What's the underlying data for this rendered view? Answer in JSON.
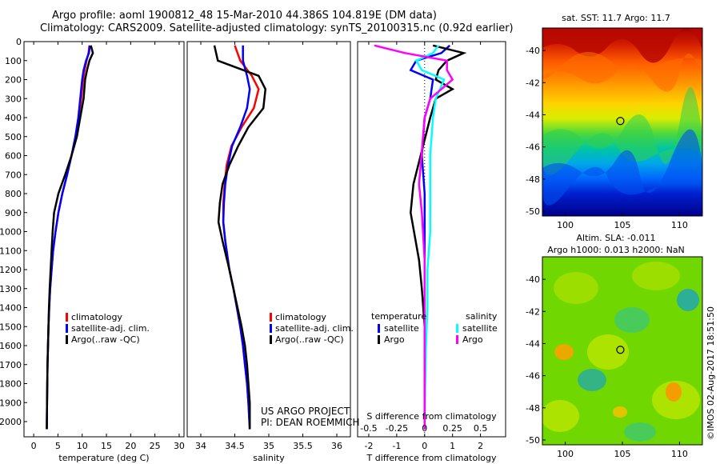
{
  "header": {
    "line1": "Argo profile: aoml 1900812_48 15-Mar-2010 44.386S 104.819E (DM data)",
    "line2": "Climatology: CARS2009. Satellite-adjusted climatology: synTS_20100315.nc (0.92d earlier)"
  },
  "credits": {
    "line1": "US ARGO PROJECT",
    "line2": "PI: DEAN ROEMMICH"
  },
  "stamp": "©IMOS 02-Aug-2017 18:51:50",
  "colors": {
    "climatology": "#ff0000",
    "satellite": "#0000ff",
    "argo": "#000000",
    "sat_salinity": "#00ffff",
    "argo_salinity": "#ff00ff"
  },
  "chart_data": [
    {
      "id": "temperature",
      "type": "line",
      "xlabel": "temperature (deg C)",
      "ylabel": "",
      "xlim": [
        -2,
        31
      ],
      "ylim": [
        2080,
        0
      ],
      "xticks": [
        0,
        5,
        10,
        15,
        20,
        25,
        30
      ],
      "yticks": [
        0,
        100,
        200,
        300,
        400,
        500,
        600,
        700,
        800,
        900,
        1000,
        1100,
        1200,
        1300,
        1400,
        1500,
        1600,
        1700,
        1800,
        1900,
        2000
      ],
      "legend": {
        "placement": "lower-middle",
        "entries": [
          "climatology",
          "satellite-adj. clim.",
          "Argo(..raw -QC)"
        ]
      },
      "series": [
        {
          "name": "climatology",
          "color": "#ff0000",
          "x": [
            11.5,
            11.3,
            10.9,
            10.5,
            10.2,
            9.8,
            9.3,
            8.7,
            7.8,
            6.9,
            5.9,
            5.1,
            4.5,
            4.0,
            3.7,
            3.4,
            3.2,
            3.05,
            2.95,
            2.85,
            2.8,
            2.75,
            2.7
          ],
          "y": [
            20,
            60,
            100,
            150,
            200,
            300,
            400,
            500,
            600,
            700,
            800,
            900,
            1000,
            1100,
            1200,
            1300,
            1400,
            1500,
            1600,
            1700,
            1800,
            1900,
            2040
          ]
        },
        {
          "name": "satellite-adj. clim.",
          "color": "#0000ff",
          "x": [
            11.6,
            11.4,
            10.8,
            10.3,
            10.0,
            9.6,
            9.2,
            8.6,
            7.8,
            6.9,
            5.9,
            5.1,
            4.5,
            4.0,
            3.7,
            3.4,
            3.2,
            3.05,
            2.95,
            2.85,
            2.8,
            2.75,
            2.7
          ],
          "y": [
            20,
            60,
            100,
            150,
            200,
            300,
            400,
            500,
            600,
            700,
            800,
            900,
            1000,
            1100,
            1200,
            1300,
            1400,
            1500,
            1600,
            1700,
            1800,
            1900,
            2040
          ]
        },
        {
          "name": "Argo(..raw -QC)",
          "color": "#000000",
          "x": [
            11.8,
            12.2,
            11.5,
            11.0,
            10.6,
            10.3,
            9.6,
            8.9,
            7.8,
            6.5,
            5.1,
            4.2,
            3.9,
            3.7,
            3.5,
            3.3,
            3.15,
            3.05,
            2.95,
            2.85,
            2.8,
            2.75,
            2.7
          ],
          "y": [
            20,
            60,
            100,
            150,
            200,
            300,
            400,
            500,
            600,
            700,
            800,
            900,
            1000,
            1100,
            1200,
            1300,
            1400,
            1500,
            1600,
            1700,
            1800,
            1900,
            2040
          ]
        }
      ]
    },
    {
      "id": "salinity",
      "type": "line",
      "xlabel": "salinity",
      "ylabel": "",
      "xlim": [
        33.8,
        36.2
      ],
      "ylim": [
        2080,
        0
      ],
      "xticks": [
        34,
        34.5,
        35,
        35.5,
        36
      ],
      "yticks": [],
      "legend": {
        "placement": "lower-right",
        "entries": [
          "climatology",
          "satellite-adj. clim.",
          "Argo(..raw -QC)"
        ]
      },
      "series": [
        {
          "name": "climatology",
          "color": "#ff0000",
          "x": [
            34.5,
            34.58,
            34.75,
            34.85,
            34.78,
            34.6,
            34.45,
            34.38,
            34.35,
            34.33,
            34.33,
            34.36,
            34.42,
            34.48,
            34.53,
            34.58,
            34.62,
            34.65,
            34.68,
            34.7,
            34.72
          ],
          "y": [
            20,
            100,
            180,
            250,
            350,
            450,
            550,
            650,
            750,
            850,
            950,
            1050,
            1200,
            1300,
            1400,
            1500,
            1600,
            1700,
            1800,
            1900,
            2040
          ]
        },
        {
          "name": "satellite-adj. clim.",
          "color": "#0000ff",
          "x": [
            34.62,
            34.62,
            34.68,
            34.72,
            34.68,
            34.58,
            34.46,
            34.4,
            34.36,
            34.34,
            34.33,
            34.36,
            34.42,
            34.48,
            34.53,
            34.58,
            34.62,
            34.65,
            34.68,
            34.7,
            34.72
          ],
          "y": [
            20,
            100,
            180,
            250,
            350,
            450,
            550,
            650,
            750,
            850,
            950,
            1050,
            1200,
            1300,
            1400,
            1500,
            1600,
            1700,
            1800,
            1900,
            2040
          ]
        },
        {
          "name": "Argo(..raw -QC)",
          "color": "#000000",
          "x": [
            34.2,
            34.25,
            34.85,
            34.95,
            34.92,
            34.7,
            34.55,
            34.42,
            34.32,
            34.28,
            34.26,
            34.32,
            34.42,
            34.48,
            34.54,
            34.6,
            34.65,
            34.68,
            34.7,
            34.72,
            34.72
          ],
          "y": [
            20,
            100,
            180,
            250,
            350,
            450,
            550,
            650,
            750,
            850,
            950,
            1050,
            1200,
            1300,
            1400,
            1500,
            1600,
            1700,
            1800,
            1900,
            2040
          ]
        }
      ]
    },
    {
      "id": "difference",
      "type": "line",
      "xlabel": "T difference from climatology",
      "xlabel_top": "S difference from climatology",
      "ylabel": "",
      "xlim": [
        -2.4,
        2.9
      ],
      "ylim": [
        2080,
        0
      ],
      "xticks": [
        -2,
        -1,
        0,
        1,
        2
      ],
      "xticks_top": [
        -0.5,
        -0.25,
        0,
        0.25,
        0.5
      ],
      "xticks_top_labels": [
        "-0.5",
        "-0.25",
        "0",
        "0.25",
        "0.5"
      ],
      "yticks": [],
      "zero_line": "dotted",
      "legend": {
        "placement": "lower",
        "groups": [
          {
            "title": "temperature",
            "entries": [
              "satellite",
              "Argo"
            ]
          },
          {
            "title": "salinity",
            "entries": [
              "satellite",
              "Argo"
            ]
          }
        ]
      },
      "series": [
        {
          "name": "satellite",
          "group": "temperature",
          "color": "#0000ff",
          "x": [
            0.9,
            0.6,
            -0.3,
            -0.5,
            0.3,
            0.2,
            0.0,
            -0.1,
            0.0,
            0.0,
            0.0,
            0.0,
            0.0,
            0.0,
            0.0
          ],
          "y": [
            20,
            60,
            100,
            150,
            200,
            300,
            400,
            600,
            800,
            1000,
            1200,
            1400,
            1600,
            1800,
            2040
          ]
        },
        {
          "name": "Argo",
          "group": "temperature",
          "color": "#000000",
          "x": [
            0.3,
            1.4,
            0.8,
            0.5,
            0.4,
            1.0,
            0.4,
            0.2,
            -0.4,
            -0.5,
            -0.2,
            -0.1,
            0.0,
            0.0,
            0.0
          ],
          "y": [
            20,
            60,
            100,
            150,
            200,
            250,
            300,
            400,
            750,
            900,
            1150,
            1300,
            1500,
            1700,
            2040
          ]
        },
        {
          "name": "satellite",
          "group": "salinity",
          "color": "#00ffff",
          "x": [
            0.5,
            0.3,
            -0.3,
            -0.1,
            0.7,
            0.4,
            0.3,
            0.2,
            0.2,
            0.2,
            0.1,
            0.1,
            0.05,
            0.02,
            0.0
          ],
          "y": [
            20,
            60,
            100,
            150,
            200,
            300,
            400,
            600,
            800,
            1000,
            1200,
            1400,
            1600,
            1800,
            2040
          ]
        },
        {
          "name": "Argo",
          "group": "salinity",
          "color": "#ff00ff",
          "x": [
            -1.8,
            -0.7,
            0.8,
            0.8,
            1.0,
            0.6,
            0.2,
            0.0,
            -0.2,
            -0.1,
            0.0,
            0.0,
            0.0,
            0.0,
            0.0
          ],
          "y": [
            20,
            60,
            100,
            150,
            200,
            250,
            300,
            400,
            750,
            900,
            1150,
            1300,
            1500,
            1700,
            2040
          ]
        }
      ]
    },
    {
      "id": "sst-map",
      "type": "heatmap",
      "title": "sat. SST: 11.7  Argo: 11.7",
      "xlim": [
        98,
        112
      ],
      "ylim": [
        -50.3,
        -38.6
      ],
      "xticks": [
        100,
        105,
        110
      ],
      "yticks": [
        -40,
        -42,
        -44,
        -46,
        -48,
        -50
      ],
      "marker": {
        "lon": 104.819,
        "lat": -44.386
      }
    },
    {
      "id": "sla-map",
      "type": "heatmap",
      "title": "Altim. SLA: -0.011",
      "subtitle": "Argo h1000: 0.013  h2000: NaN",
      "xlim": [
        98,
        112
      ],
      "ylim": [
        -50.3,
        -38.6
      ],
      "xticks": [
        100,
        105,
        110
      ],
      "yticks": [
        -40,
        -42,
        -44,
        -46,
        -48,
        -50
      ],
      "marker": {
        "lon": 104.819,
        "lat": -44.386
      }
    }
  ]
}
